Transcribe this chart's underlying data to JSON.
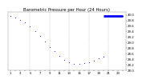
{
  "title": "Barometric Pressure per Hour (24 Hours)",
  "hours": [
    1,
    2,
    3,
    4,
    5,
    6,
    7,
    8,
    9,
    10,
    11,
    12,
    13,
    14,
    15,
    16,
    17,
    18,
    19,
    20,
    21,
    22,
    23,
    24
  ],
  "pressure": [
    29.95,
    29.9,
    29.83,
    29.72,
    29.58,
    29.42,
    29.25,
    29.05,
    28.85,
    28.68,
    28.52,
    28.38,
    28.28,
    28.22,
    28.22,
    28.25,
    28.3,
    28.36,
    28.42,
    28.48,
    29.95,
    29.95,
    29.95,
    29.95
  ],
  "marker_color": "#0000ff",
  "line_color": "#0000ff",
  "bg_color": "#ffffff",
  "grid_color": "#aaaaaa",
  "title_color": "#000000",
  "ylim_min": 28.0,
  "ylim_max": 30.1,
  "ytick_values": [
    28.0,
    28.2,
    28.4,
    28.6,
    28.8,
    29.0,
    29.2,
    29.4,
    29.6,
    29.8,
    30.0
  ],
  "ytick_labels": [
    "28.0",
    "28.2",
    "28.4",
    "28.6",
    "28.8",
    "29.0",
    "29.2",
    "29.4",
    "29.6",
    "29.8",
    "30.0"
  ],
  "hline_start": 20,
  "hline_end": 24,
  "hline_val": 29.95,
  "title_fontsize": 3.8,
  "tick_fontsize": 2.8,
  "marker_size": 1.5,
  "vgrid_positions": [
    5,
    9,
    13,
    17,
    21
  ],
  "xlim_min": 0.5,
  "xlim_max": 24.5
}
